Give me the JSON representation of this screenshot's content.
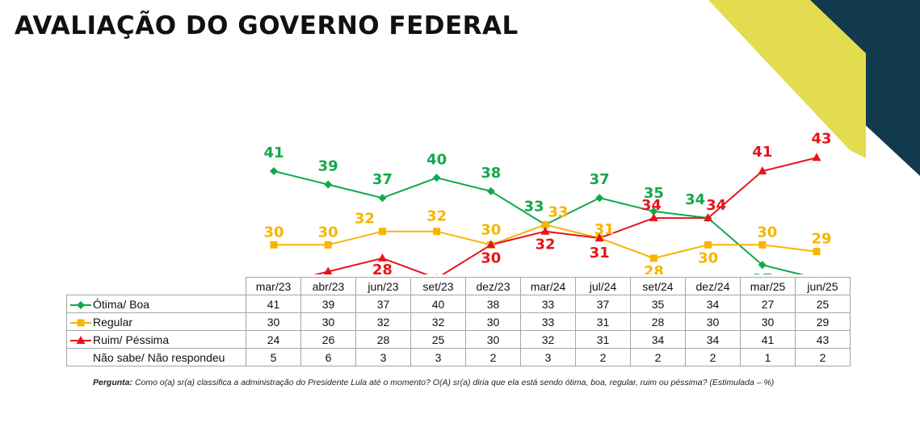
{
  "title": "AVALIAÇÃO DO GOVERNO FEDERAL",
  "colors": {
    "green": "#12a84b",
    "yellow": "#f7b500",
    "red": "#e8141b",
    "corner_dark": "#123a4f",
    "corner_yellow": "#e3dc4f"
  },
  "chart_data": {
    "type": "line",
    "categories": [
      "mar/23",
      "abr/23",
      "jun/23",
      "set/23",
      "dez/23",
      "mar/24",
      "jul/24",
      "set/24",
      "dez/24",
      "mar/25",
      "jun/25"
    ],
    "series": [
      {
        "name": "Ótima/ Boa",
        "values": [
          41,
          39,
          37,
          40,
          38,
          33,
          37,
          35,
          34,
          27,
          25
        ],
        "marker": "diamond",
        "color": "#12a84b"
      },
      {
        "name": "Regular",
        "values": [
          30,
          30,
          32,
          32,
          30,
          33,
          31,
          28,
          30,
          30,
          29
        ],
        "marker": "square",
        "color": "#f7b500"
      },
      {
        "name": "Ruim/ Péssima",
        "values": [
          24,
          26,
          28,
          25,
          30,
          32,
          31,
          34,
          34,
          41,
          43
        ],
        "marker": "triangle",
        "color": "#e8141b"
      },
      {
        "name": "Não sabe/ Não respondeu",
        "values": [
          5,
          6,
          3,
          3,
          2,
          3,
          2,
          2,
          2,
          1,
          2
        ],
        "marker": "none",
        "color": ""
      }
    ],
    "ylim": [
      20,
      46
    ],
    "xlabel": "",
    "ylabel": "",
    "grid": false,
    "legend": "table-below"
  },
  "question": {
    "label": "Pergunta:",
    "text": "Como o(a) sr(a) classifica a administração do Presidente Lula até o momento? O(A) sr(a) diria que ela está sendo ótima, boa, regular, ruim ou péssima? (Estimulada – %)"
  }
}
